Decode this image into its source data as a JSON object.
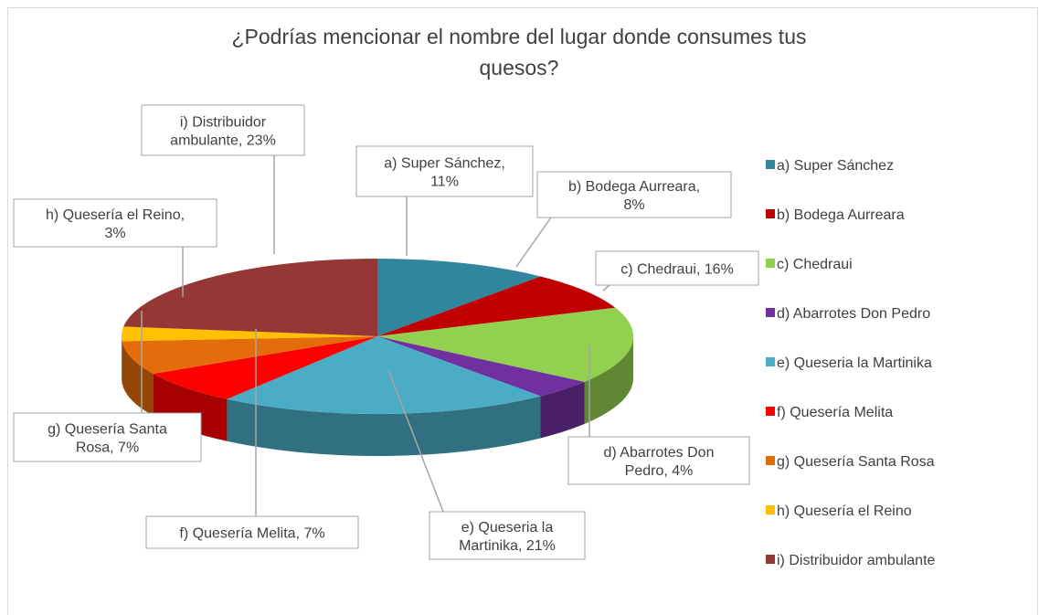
{
  "chart_data": {
    "type": "pie3d",
    "title": "¿Podrías mencionar el nombre del lugar donde consumes tus quesos?",
    "categories": [
      "a) Super Sánchez",
      "b) Bodega Aurreara",
      "c) Chedraui",
      "d) Abarrotes Don Pedro",
      "e) Queseria la Martinika",
      "f) Quesería Melita",
      "g) Quesería Santa Rosa",
      "h) Quesería el Reino",
      "i) Distribuidor ambulante"
    ],
    "values": [
      11,
      8,
      16,
      4,
      21,
      7,
      7,
      3,
      23
    ],
    "value_labels": [
      "a) Super Sánchez, 11%",
      "b) Bodega Aurreara, 8%",
      "c) Chedraui, 16%",
      "d) Abarrotes Don Pedro, 4%",
      "e) Queseria la Martinika, 21%",
      "f) Quesería Melita, 7%",
      "g) Quesería Santa Rosa, 7%",
      "h) Quesería el Reino, 3%",
      "i) Distribuidor ambulante, 23%"
    ],
    "colors": [
      "#31859c",
      "#c00000",
      "#92d050",
      "#7030a0",
      "#4bacc6",
      "#ff0000",
      "#e46c0a",
      "#ffc000",
      "#953735"
    ],
    "legend": "right"
  }
}
